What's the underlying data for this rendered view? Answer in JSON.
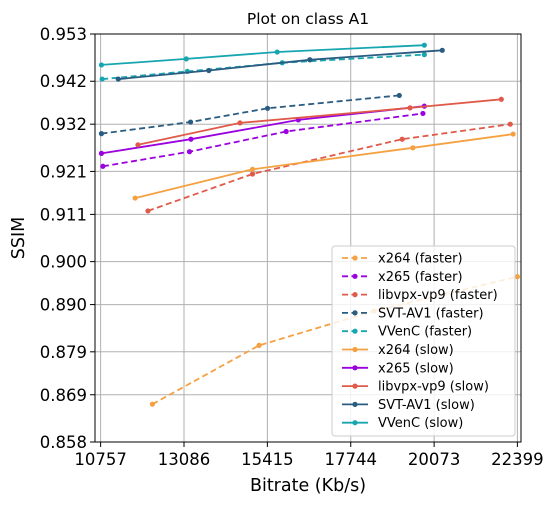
{
  "chart_data": {
    "type": "line",
    "title": "Plot on class A1",
    "xlabel": "Bitrate (Kb/s)",
    "ylabel": "SSIM",
    "xlim": [
      10600,
      22500
    ],
    "ylim": [
      0.858,
      0.953
    ],
    "xticks": [
      10757,
      13086,
      15415,
      17744,
      20073,
      22399
    ],
    "yticks": [
      0.858,
      0.869,
      0.879,
      0.89,
      0.9,
      0.911,
      0.921,
      0.932,
      0.942,
      0.953
    ],
    "xtick_labels": [
      "10757",
      "13086",
      "15415",
      "17744",
      "20073",
      "22399"
    ],
    "ytick_labels": [
      "0.858",
      "0.869",
      "0.879",
      "0.890",
      "0.900",
      "0.911",
      "0.921",
      "0.932",
      "0.942",
      "0.953"
    ],
    "grid": true,
    "legend_position": "lower-right",
    "series": [
      {
        "name": "x264 (faster)",
        "color": "#f5a142",
        "dash": true,
        "x": [
          12203,
          15183,
          18400,
          22399
        ],
        "y": [
          0.8668,
          0.8805,
          0.8885,
          0.8965
        ]
      },
      {
        "name": "x265 (faster)",
        "color": "#9b00e0",
        "dash": true,
        "x": [
          10820,
          13240,
          15940,
          19760
        ],
        "y": [
          0.9222,
          0.9256,
          0.9303,
          0.9345
        ]
      },
      {
        "name": "libvpx-vp9 (faster)",
        "color": "#e05a4a",
        "dash": true,
        "x": [
          12080,
          15000,
          19180,
          22200
        ],
        "y": [
          0.9118,
          0.9204,
          0.9285,
          0.932
        ]
      },
      {
        "name": "SVT-AV1 (faster)",
        "color": "#2a5c82",
        "dash": true,
        "x": [
          10780,
          13270,
          15420,
          19100
        ],
        "y": [
          0.9298,
          0.9325,
          0.9357,
          0.9387
        ]
      },
      {
        "name": "VVenC (faster)",
        "color": "#17a6b0",
        "dash": true,
        "x": [
          10800,
          13180,
          15830,
          19800
        ],
        "y": [
          0.9425,
          0.9443,
          0.9463,
          0.9482
        ]
      },
      {
        "name": "x264 (slow)",
        "color": "#f5a142",
        "dash": false,
        "x": [
          11720,
          15000,
          19480,
          22280
        ],
        "y": [
          0.9148,
          0.9215,
          0.9265,
          0.9297
        ]
      },
      {
        "name": "x265 (slow)",
        "color": "#9b00e0",
        "dash": false,
        "x": [
          10780,
          13280,
          16280,
          19800
        ],
        "y": [
          0.9252,
          0.9285,
          0.933,
          0.9362
        ]
      },
      {
        "name": "libvpx-vp9 (slow)",
        "color": "#e05a4a",
        "dash": false,
        "x": [
          11800,
          14650,
          19400,
          21950
        ],
        "y": [
          0.9272,
          0.9323,
          0.9358,
          0.9378
        ]
      },
      {
        "name": "SVT-AV1 (slow)",
        "color": "#2a5c82",
        "dash": false,
        "x": [
          11250,
          13780,
          16600,
          20300
        ],
        "y": [
          0.9425,
          0.9445,
          0.947,
          0.9492
        ]
      },
      {
        "name": "VVenC (slow)",
        "color": "#17a6b0",
        "dash": false,
        "x": [
          10780,
          13150,
          15690,
          19800
        ],
        "y": [
          0.9458,
          0.9472,
          0.9488,
          0.9504
        ]
      }
    ]
  }
}
